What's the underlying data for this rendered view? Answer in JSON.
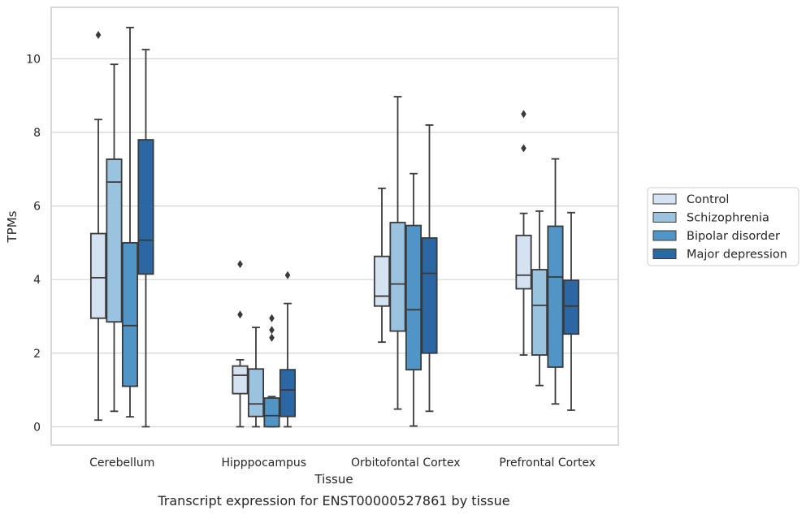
{
  "caption": "Transcript expression for ENST00000527861 by tissue",
  "chart_data": {
    "type": "box",
    "xlabel": "Tissue",
    "ylabel": "TPMs",
    "ylim": [
      -0.5,
      11.4
    ],
    "yticks": [
      0,
      2,
      4,
      6,
      8,
      10
    ],
    "grid": "horizontal",
    "legend_position": "right",
    "categories": [
      "Cerebellum",
      "Hipppocampus",
      "Orbitofontal Cortex",
      "Prefrontal Cortex"
    ],
    "series": [
      {
        "name": "Control",
        "color": "#d4e2f1",
        "boxes": [
          {
            "min": 0.18,
            "q1": 2.95,
            "median": 4.05,
            "q3": 5.25,
            "max": 8.35,
            "outliers": [
              10.65
            ]
          },
          {
            "min": 0.0,
            "q1": 0.9,
            "median": 1.4,
            "q3": 1.65,
            "max": 1.82,
            "outliers": [
              3.05,
              4.42
            ]
          },
          {
            "min": 2.3,
            "q1": 3.28,
            "median": 3.55,
            "q3": 4.63,
            "max": 6.48,
            "outliers": []
          },
          {
            "min": 1.95,
            "q1": 3.75,
            "median": 4.12,
            "q3": 5.2,
            "max": 5.8,
            "outliers": [
              7.57,
              8.5
            ]
          }
        ]
      },
      {
        "name": "Schizophrenia",
        "color": "#9ac3df",
        "boxes": [
          {
            "min": 0.42,
            "q1": 2.85,
            "median": 6.65,
            "q3": 7.27,
            "max": 9.85,
            "outliers": []
          },
          {
            "min": 0.0,
            "q1": 0.28,
            "median": 0.62,
            "q3": 1.57,
            "max": 2.7,
            "outliers": []
          },
          {
            "min": 0.48,
            "q1": 2.6,
            "median": 3.88,
            "q3": 5.55,
            "max": 8.97,
            "outliers": []
          },
          {
            "min": 1.12,
            "q1": 1.95,
            "median": 3.3,
            "q3": 4.27,
            "max": 5.86,
            "outliers": []
          }
        ]
      },
      {
        "name": "Bipolar disorder",
        "color": "#5095c6",
        "boxes": [
          {
            "min": 0.27,
            "q1": 1.1,
            "median": 2.75,
            "q3": 5.0,
            "max": 10.85,
            "outliers": []
          },
          {
            "min": 0.0,
            "q1": 0.0,
            "median": 0.3,
            "q3": 0.78,
            "max": 0.82,
            "outliers": [
              2.42,
              2.63,
              2.95
            ]
          },
          {
            "min": 0.02,
            "q1": 1.55,
            "median": 3.18,
            "q3": 5.47,
            "max": 6.88,
            "outliers": []
          },
          {
            "min": 0.62,
            "q1": 1.62,
            "median": 4.07,
            "q3": 5.45,
            "max": 7.28,
            "outliers": []
          }
        ]
      },
      {
        "name": "Major depression",
        "color": "#2a67a3",
        "boxes": [
          {
            "min": 0.0,
            "q1": 4.15,
            "median": 5.07,
            "q3": 7.8,
            "max": 10.25,
            "outliers": []
          },
          {
            "min": 0.0,
            "q1": 0.28,
            "median": 1.0,
            "q3": 1.55,
            "max": 3.35,
            "outliers": [
              4.12
            ]
          },
          {
            "min": 0.42,
            "q1": 2.0,
            "median": 4.17,
            "q3": 5.13,
            "max": 8.2,
            "outliers": []
          },
          {
            "min": 0.45,
            "q1": 2.52,
            "median": 3.28,
            "q3": 3.98,
            "max": 5.82,
            "outliers": []
          }
        ]
      }
    ]
  }
}
